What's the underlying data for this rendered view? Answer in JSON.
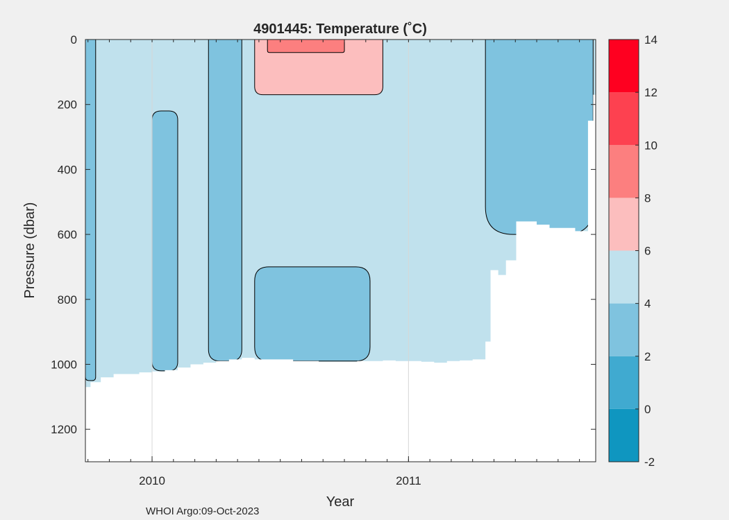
{
  "chart_data": {
    "type": "heatmap",
    "title": "4901445:  Temperature (˚C)",
    "xlabel": "Year",
    "ylabel": "Pressure (dbar)",
    "x_tick_labels": [
      "2010",
      "2011"
    ],
    "x_tick_years": [
      2010,
      2011
    ],
    "x_range": [
      2009.74,
      2011.73
    ],
    "y_ticks": [
      0,
      200,
      400,
      600,
      800,
      1000,
      1200
    ],
    "ylim": [
      0,
      1300
    ],
    "y_reversed": true,
    "grid": "x only",
    "colorbar": {
      "placement": "right",
      "ticks": [
        -2,
        0,
        2,
        4,
        6,
        8,
        10,
        12,
        14
      ],
      "range": [
        -2,
        14
      ],
      "levels": [
        {
          "from": -2,
          "to": 0,
          "color": "#0f96c0"
        },
        {
          "from": 0,
          "to": 2,
          "color": "#40aad0"
        },
        {
          "from": 2,
          "to": 4,
          "color": "#7fc3df"
        },
        {
          "from": 4,
          "to": 6,
          "color": "#c0e1ed"
        },
        {
          "from": 6,
          "to": 8,
          "color": "#fcbebe"
        },
        {
          "from": 8,
          "to": 10,
          "color": "#fc7f7f"
        },
        {
          "from": 10,
          "to": 12,
          "color": "#fd4150"
        },
        {
          "from": 12,
          "to": 14,
          "color": "#fe0020"
        }
      ]
    },
    "max_profile_depth": {
      "time": [
        2009.74,
        2009.76,
        2009.8,
        2009.85,
        2009.9,
        2009.95,
        2010.0,
        2010.05,
        2010.1,
        2010.15,
        2010.2,
        2010.25,
        2010.3,
        2010.35,
        2010.4,
        2010.45,
        2010.5,
        2010.55,
        2010.6,
        2010.65,
        2010.7,
        2010.75,
        2010.8,
        2010.85,
        2010.9,
        2010.95,
        2011.0,
        2011.05,
        2011.1,
        2011.15,
        2011.2,
        2011.25,
        2011.3,
        2011.32,
        2011.35,
        2011.38,
        2011.42,
        2011.45,
        2011.5,
        2011.55,
        2011.6,
        2011.65,
        2011.68,
        2011.7,
        2011.72
      ],
      "pressure": [
        1070,
        1055,
        1040,
        1030,
        1030,
        1025,
        1022,
        1018,
        1010,
        1000,
        995,
        990,
        985,
        980,
        985,
        985,
        985,
        990,
        990,
        992,
        992,
        992,
        990,
        990,
        988,
        990,
        990,
        992,
        995,
        990,
        988,
        985,
        930,
        710,
        725,
        680,
        560,
        560,
        570,
        580,
        580,
        590,
        590,
        250,
        170
      ]
    },
    "contours": [
      {
        "time_start": 2009.74,
        "time_end": 2009.78,
        "pressure_top": 0,
        "pressure_bottom": 1050,
        "temperature_range": "2-4"
      },
      {
        "time_start": 2010.0,
        "time_end": 2010.1,
        "pressure_top": 220,
        "pressure_bottom": 1020,
        "temperature_range": "2-4"
      },
      {
        "time_start": 2010.22,
        "time_end": 2010.35,
        "pressure_top": 0,
        "pressure_bottom": 990,
        "temperature_range": "2-4"
      },
      {
        "time_start": 2010.4,
        "time_end": 2010.85,
        "pressure_top": 700,
        "pressure_bottom": 990,
        "temperature_range": "2-4"
      },
      {
        "time_start": 2011.3,
        "time_end": 2011.72,
        "pressure_top": 0,
        "pressure_bottom": 600,
        "temperature_range": "2-4"
      },
      {
        "time_start": 2010.4,
        "time_end": 2010.9,
        "pressure_top": 0,
        "pressure_bottom": 170,
        "temperature_range": "6-8"
      },
      {
        "time_start": 2010.45,
        "time_end": 2010.75,
        "pressure_top": 0,
        "pressure_bottom": 40,
        "temperature_range": "8-10"
      }
    ]
  },
  "footer": "WHOI Argo:09-Oct-2023"
}
